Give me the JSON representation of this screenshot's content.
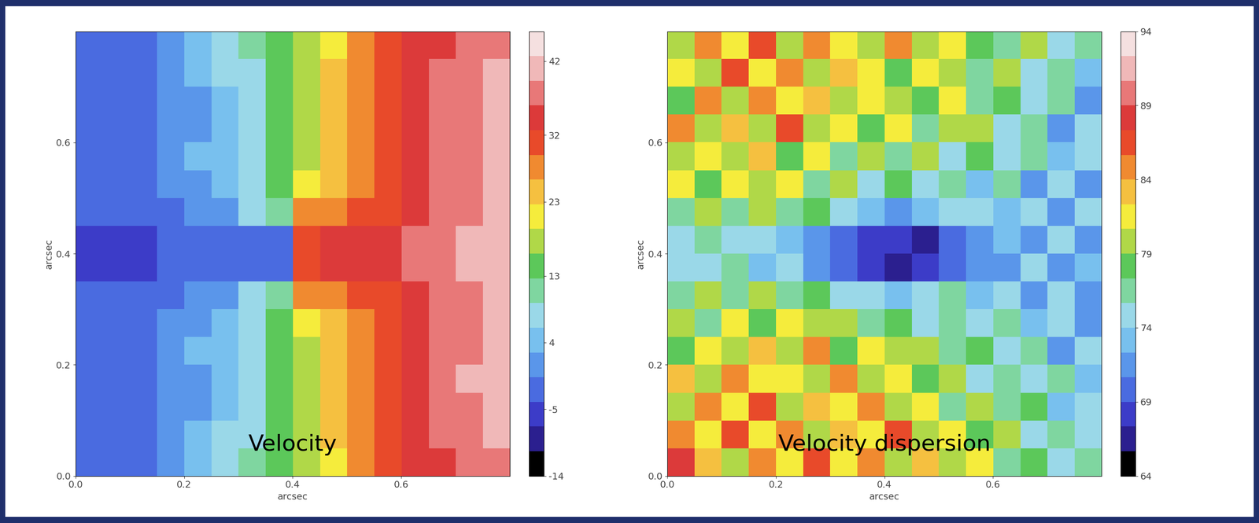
{
  "chart_data": [
    {
      "type": "heatmap",
      "annotation": "Velocity",
      "xlabel": "arcsec",
      "ylabel": "arcsec",
      "xlim": [
        0,
        0.8
      ],
      "ylim": [
        0,
        0.8
      ],
      "xticks": [
        {
          "value": 0,
          "label": "0.0"
        },
        0.2,
        0.4,
        0.6
      ],
      "yticks": [
        {
          "value": 0,
          "label": "0.0"
        },
        0.2,
        0.4,
        0.6
      ],
      "color_range": [
        -14,
        46
      ],
      "color_ticks": [
        -14,
        -5,
        4,
        13,
        23,
        32,
        42
      ],
      "cells": [
        [
          -2,
          -3,
          -1,
          1,
          3,
          6,
          10,
          14,
          18,
          22,
          26,
          30,
          33,
          35,
          38,
          39
        ],
        [
          -3,
          -2,
          -1,
          0,
          3,
          6,
          9,
          14,
          19,
          23,
          27,
          31,
          34,
          36,
          38,
          40
        ],
        [
          -3,
          -3,
          -2,
          0,
          2,
          5,
          9,
          13,
          19,
          23,
          28,
          31,
          34,
          36,
          39,
          40
        ],
        [
          -3,
          -3,
          -2,
          0,
          2,
          5,
          9,
          14,
          19,
          24,
          28,
          31,
          34,
          37,
          39,
          41
        ],
        [
          -3,
          -3,
          -1,
          1,
          3,
          5,
          9,
          14,
          19,
          23,
          27,
          30,
          33,
          36,
          38,
          40
        ],
        [
          -4,
          -3,
          -2,
          0,
          2,
          4,
          8,
          13,
          20,
          25,
          28,
          31,
          34,
          36,
          38,
          40
        ],
        [
          -4,
          -4,
          -3,
          -2,
          0,
          2,
          6,
          12,
          26,
          28,
          30,
          32,
          34,
          36,
          38,
          40
        ],
        [
          -5,
          -5,
          -5,
          -4,
          -4,
          -3,
          -2,
          -1,
          31,
          33,
          34,
          35,
          36,
          38,
          40,
          41
        ],
        [
          -5,
          -5,
          -5,
          -4,
          -4,
          -3,
          -2,
          -1,
          31,
          33,
          34,
          35,
          36,
          38,
          40,
          41
        ],
        [
          -4,
          -4,
          -3,
          -2,
          0,
          2,
          6,
          12,
          26,
          28,
          30,
          32,
          34,
          36,
          38,
          40
        ],
        [
          -4,
          -3,
          -2,
          0,
          2,
          4,
          8,
          13,
          20,
          25,
          28,
          31,
          34,
          36,
          38,
          40
        ],
        [
          -3,
          -3,
          -1,
          1,
          3,
          5,
          9,
          14,
          19,
          23,
          27,
          30,
          33,
          36,
          38,
          40
        ],
        [
          -3,
          -3,
          -2,
          0,
          2,
          5,
          9,
          14,
          19,
          24,
          28,
          31,
          34,
          37,
          40,
          41
        ],
        [
          -3,
          -3,
          -2,
          0,
          2,
          5,
          9,
          13,
          19,
          23,
          28,
          31,
          34,
          36,
          39,
          40
        ],
        [
          -3,
          -2,
          -1,
          0,
          3,
          6,
          9,
          14,
          19,
          23,
          27,
          31,
          34,
          36,
          38,
          40
        ],
        [
          -2,
          -3,
          -1,
          1,
          3,
          6,
          10,
          14,
          18,
          22,
          26,
          30,
          33,
          35,
          37,
          39
        ]
      ]
    },
    {
      "type": "heatmap",
      "annotation": "Velocity dispersion",
      "xlabel": "arcsec",
      "ylabel": "arcsec",
      "xlim": [
        0,
        0.8
      ],
      "ylim": [
        0,
        0.8
      ],
      "xticks": [
        {
          "value": 0,
          "label": "0.0"
        },
        0.2,
        0.4,
        0.6
      ],
      "yticks": [
        {
          "value": 0,
          "label": "0.0"
        },
        0.2,
        0.4,
        0.6
      ],
      "color_range": [
        64,
        94
      ],
      "color_ticks": [
        64,
        69,
        74,
        79,
        84,
        89,
        94
      ],
      "cells": [
        [
          80,
          84,
          82,
          86,
          80,
          84,
          82,
          79,
          84,
          80,
          82,
          78,
          76,
          79,
          74,
          76
        ],
        [
          82,
          80,
          86,
          82,
          84,
          79,
          83,
          81,
          78,
          82,
          80,
          77,
          79,
          75,
          77,
          73
        ],
        [
          78,
          84,
          80,
          85,
          81,
          83,
          79,
          82,
          80,
          78,
          81,
          76,
          78,
          74,
          76,
          72
        ],
        [
          84,
          79,
          83,
          80,
          86,
          80,
          82,
          78,
          81,
          77,
          79,
          80,
          75,
          77,
          72,
          74
        ],
        [
          79,
          82,
          80,
          83,
          78,
          81,
          77,
          80,
          76,
          79,
          75,
          78,
          74,
          76,
          73,
          75
        ],
        [
          81,
          78,
          82,
          79,
          81,
          76,
          79,
          75,
          78,
          74,
          77,
          73,
          76,
          72,
          75,
          71
        ],
        [
          76,
          80,
          77,
          79,
          76,
          78,
          74,
          73,
          72,
          73,
          75,
          74,
          73,
          75,
          72,
          74
        ],
        [
          74,
          76,
          75,
          74,
          73,
          72,
          70,
          68,
          68,
          67,
          69,
          71,
          73,
          72,
          74,
          72
        ],
        [
          75,
          74,
          76,
          73,
          74,
          71,
          69,
          68,
          67,
          68,
          70,
          72,
          72,
          74,
          71,
          73
        ],
        [
          77,
          79,
          76,
          80,
          77,
          78,
          75,
          74,
          73,
          74,
          76,
          73,
          75,
          72,
          74,
          71
        ],
        [
          80,
          77,
          81,
          78,
          82,
          79,
          80,
          77,
          78,
          75,
          77,
          74,
          76,
          73,
          75,
          72
        ],
        [
          78,
          82,
          79,
          83,
          80,
          84,
          78,
          81,
          79,
          80,
          76,
          78,
          74,
          77,
          72,
          74
        ],
        [
          83,
          80,
          84,
          81,
          82,
          79,
          85,
          80,
          82,
          78,
          80,
          75,
          77,
          74,
          76,
          73
        ],
        [
          80,
          85,
          82,
          86,
          80,
          83,
          81,
          84,
          79,
          82,
          77,
          79,
          76,
          78,
          73,
          75
        ],
        [
          84,
          81,
          87,
          82,
          85,
          80,
          83,
          82,
          86,
          80,
          81,
          78,
          80,
          75,
          77,
          74
        ],
        [
          88,
          83,
          80,
          85,
          82,
          86,
          81,
          84,
          80,
          83,
          79,
          81,
          76,
          78,
          74,
          76
        ]
      ]
    }
  ]
}
